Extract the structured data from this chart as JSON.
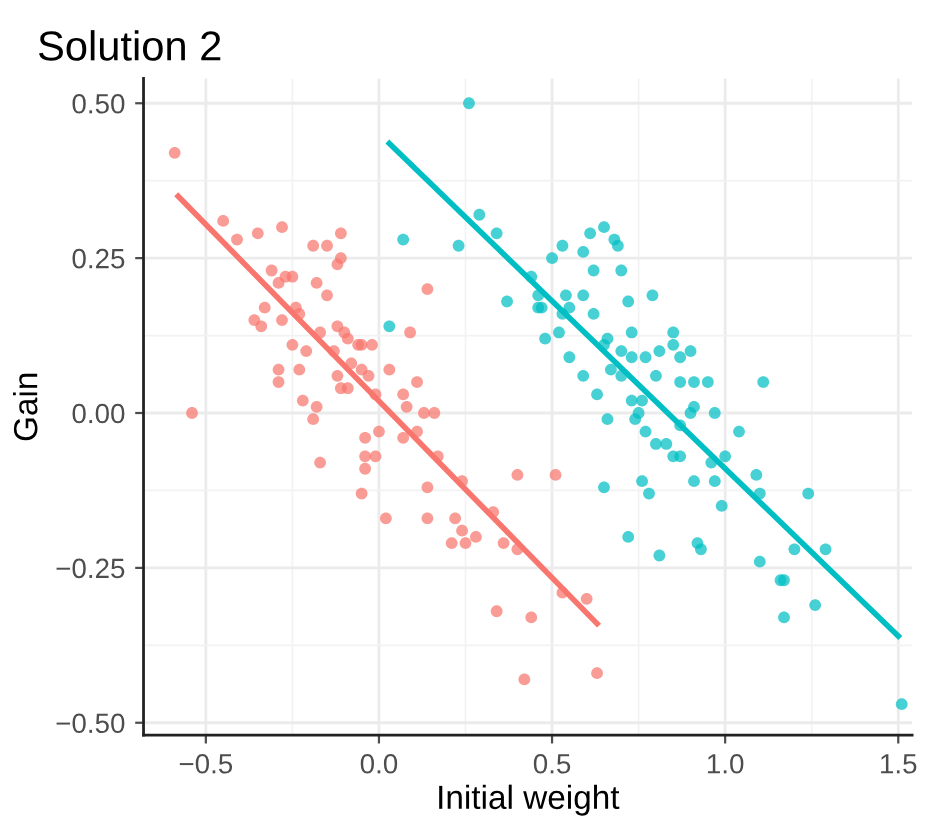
{
  "chart_data": {
    "type": "scatter",
    "title": "Solution 2",
    "xlabel": "Initial weight",
    "ylabel": "Gain",
    "xlim": [
      -0.68,
      1.54
    ],
    "ylim": [
      -0.52,
      0.54
    ],
    "xticks": [
      {
        "value": -0.5,
        "label": "−0.5"
      },
      {
        "value": 0,
        "label": "0.0"
      },
      {
        "value": 0.5,
        "label": "0.5"
      },
      {
        "value": 1,
        "label": "1.0"
      },
      {
        "value": 1.5,
        "label": "1.5"
      }
    ],
    "yticks": [
      {
        "value": -0.5,
        "label": "−0.50"
      },
      {
        "value": -0.25,
        "label": "−0.25"
      },
      {
        "value": 0,
        "label": "0.00"
      },
      {
        "value": 0.25,
        "label": "0.25"
      },
      {
        "value": 0.5,
        "label": "0.50"
      }
    ],
    "grid": true,
    "legend": false,
    "marker": "circle",
    "series": [
      {
        "color": "#f8766d",
        "x": [
          -0.59,
          -0.54,
          -0.45,
          -0.41,
          -0.35,
          -0.28,
          -0.19,
          -0.15,
          -0.11,
          -0.11,
          -0.12,
          -0.31,
          -0.25,
          -0.27,
          -0.29,
          -0.18,
          -0.15,
          -0.33,
          -0.24,
          -0.23,
          -0.36,
          -0.34,
          -0.28,
          -0.17,
          -0.12,
          -0.25,
          -0.1,
          -0.09,
          -0.06,
          -0.02,
          -0.05,
          -0.21,
          -0.13,
          0.14,
          0.09,
          -0.29,
          -0.23,
          -0.29,
          -0.08,
          -0.05,
          -0.12,
          -0.11,
          -0.09,
          -0.03,
          -0.01,
          0.03,
          0.11,
          0.07,
          0.08,
          0.13,
          0.16,
          -0.22,
          -0.18,
          -0.19,
          0.0,
          -0.04,
          -0.17,
          -0.04,
          -0.04,
          -0.01,
          -0.05,
          0.02,
          0.07,
          0.11,
          0.14,
          0.14,
          0.17,
          0.22,
          0.21,
          0.24,
          0.24,
          0.25,
          0.28,
          0.33,
          0.36,
          0.34,
          0.4,
          0.51,
          0.4,
          0.53,
          0.6,
          0.44,
          0.42,
          0.63
        ],
        "values": [
          0.42,
          0.0,
          0.31,
          0.28,
          0.29,
          0.3,
          0.27,
          0.27,
          0.29,
          0.25,
          0.24,
          0.23,
          0.22,
          0.22,
          0.21,
          0.21,
          0.19,
          0.17,
          0.17,
          0.16,
          0.15,
          0.14,
          0.15,
          0.13,
          0.14,
          0.11,
          0.13,
          0.12,
          0.11,
          0.11,
          0.11,
          0.1,
          0.1,
          0.2,
          0.13,
          0.07,
          0.07,
          0.05,
          0.08,
          0.07,
          0.06,
          0.04,
          0.04,
          0.06,
          0.03,
          0.07,
          0.05,
          0.03,
          0.01,
          0.0,
          0.0,
          0.02,
          0.01,
          -0.01,
          -0.03,
          -0.04,
          -0.08,
          -0.07,
          -0.09,
          -0.07,
          -0.13,
          -0.17,
          -0.04,
          -0.03,
          -0.12,
          -0.17,
          -0.07,
          -0.17,
          -0.21,
          -0.19,
          -0.11,
          -0.21,
          -0.2,
          -0.16,
          -0.21,
          -0.32,
          -0.1,
          -0.1,
          -0.22,
          -0.29,
          -0.3,
          -0.33,
          -0.43,
          -0.42
        ]
      },
      {
        "color": "#00bfc4",
        "x": [
          0.26,
          0.07,
          0.23,
          0.29,
          0.34,
          0.37,
          0.03,
          0.44,
          0.46,
          0.47,
          0.46,
          0.5,
          0.53,
          0.59,
          0.61,
          0.65,
          0.68,
          0.69,
          0.62,
          0.7,
          0.54,
          0.59,
          0.53,
          0.55,
          0.62,
          0.72,
          0.79,
          0.52,
          0.48,
          0.66,
          0.73,
          0.85,
          0.55,
          0.65,
          0.7,
          0.67,
          0.7,
          0.73,
          0.77,
          0.81,
          0.85,
          0.87,
          0.9,
          0.59,
          0.8,
          0.87,
          0.91,
          0.95,
          1.11,
          0.63,
          0.73,
          0.76,
          0.66,
          0.74,
          0.75,
          0.87,
          0.9,
          0.91,
          0.97,
          1.04,
          0.77,
          0.8,
          0.83,
          0.85,
          0.87,
          0.96,
          1.0,
          0.97,
          0.91,
          0.76,
          0.78,
          0.65,
          0.99,
          1.09,
          1.1,
          1.24,
          0.72,
          0.81,
          0.92,
          0.93,
          1.1,
          1.2,
          1.29,
          1.16,
          1.17,
          1.26,
          1.17,
          1.51
        ],
        "values": [
          0.5,
          0.28,
          0.27,
          0.32,
          0.29,
          0.18,
          0.14,
          0.22,
          0.17,
          0.17,
          0.19,
          0.25,
          0.27,
          0.26,
          0.29,
          0.3,
          0.28,
          0.27,
          0.23,
          0.23,
          0.19,
          0.19,
          0.16,
          0.17,
          0.16,
          0.18,
          0.19,
          0.13,
          0.12,
          0.12,
          0.13,
          0.13,
          0.09,
          0.11,
          0.1,
          0.07,
          0.06,
          0.09,
          0.09,
          0.1,
          0.11,
          0.09,
          0.1,
          0.06,
          0.06,
          0.05,
          0.05,
          0.05,
          0.05,
          0.03,
          0.02,
          0.02,
          -0.01,
          -0.01,
          0.0,
          -0.02,
          0.0,
          0.01,
          0.0,
          -0.03,
          -0.03,
          -0.05,
          -0.05,
          -0.07,
          -0.07,
          -0.08,
          -0.07,
          -0.11,
          -0.11,
          -0.11,
          -0.13,
          -0.12,
          -0.15,
          -0.1,
          -0.13,
          -0.13,
          -0.2,
          -0.23,
          -0.21,
          -0.22,
          -0.24,
          -0.22,
          -0.22,
          -0.27,
          -0.27,
          -0.31,
          -0.33,
          -0.47
        ]
      },
      {
        "type": "line",
        "marker": "none",
        "color": "#f8766d",
        "x": [
          -0.58,
          0.63
        ],
        "values": [
          0.35,
          -0.34
        ]
      },
      {
        "type": "line",
        "marker": "none",
        "color": "#00bfc4",
        "x": [
          0.03,
          1.5
        ],
        "values": [
          0.435,
          -0.36
        ]
      }
    ]
  }
}
